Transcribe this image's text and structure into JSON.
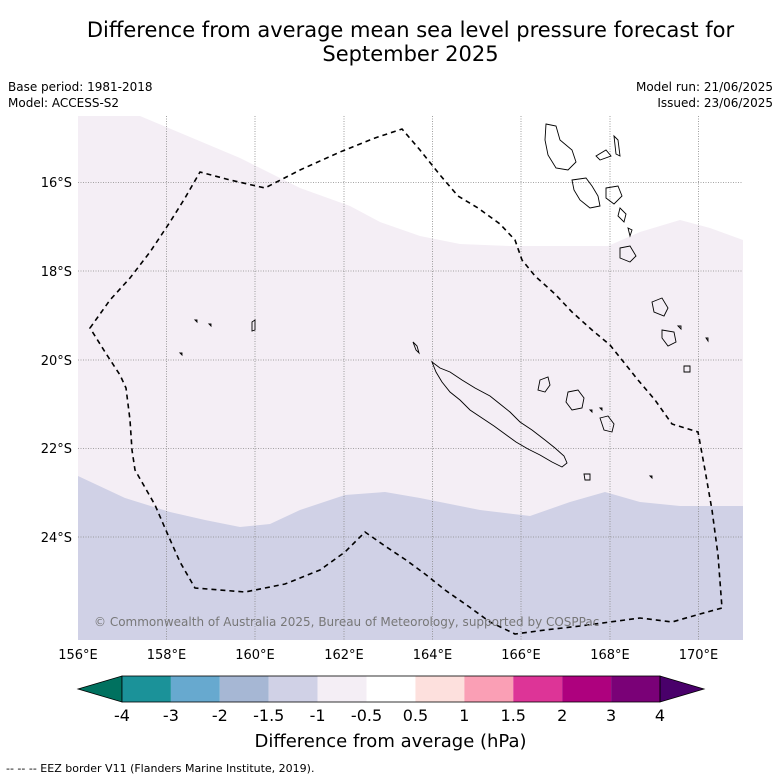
{
  "title": "Difference from average mean sea level pressure forecast for September 2025",
  "info": {
    "base_period": "Base period: 1981-2018",
    "model": "Model: ACCESS-S2",
    "model_run": "Model run: 21/06/2025",
    "issued": "Issued: 23/06/2025"
  },
  "map": {
    "lon_labels": [
      "156°E",
      "158°E",
      "160°E",
      "162°E",
      "164°E",
      "166°E",
      "168°E",
      "170°E"
    ],
    "lat_labels": [
      "16°S",
      "18°S",
      "20°S",
      "22°S",
      "24°S"
    ],
    "copyright": "© Commonwealth of Australia 2025, Bureau of Meteorology, supported by COSPPac",
    "colors": {
      "band_neg1_neg05": "#f4eef5",
      "band_neg15_neg1": "#d0d1e6",
      "land_outline": "#000000",
      "grid": "#888888"
    }
  },
  "colorbar": {
    "tick_labels": [
      "-4",
      "-3",
      "-2",
      "-1.5",
      "-1",
      "-0.5",
      "0.5",
      "1",
      "1.5",
      "2",
      "3",
      "4"
    ],
    "colors": [
      "#00715f",
      "#1b9299",
      "#67a9cf",
      "#a6b7d4",
      "#d0d1e6",
      "#f4eef5",
      "#ffffff",
      "#fde0dd",
      "#fa9fb5",
      "#dd3497",
      "#ae017e",
      "#7a0177",
      "#49006a"
    ],
    "label": "Difference from average (hPa)"
  },
  "legend": {
    "eez": "--  --  -- EEZ border V11 (Flanders Marine Institute, 2019)."
  }
}
